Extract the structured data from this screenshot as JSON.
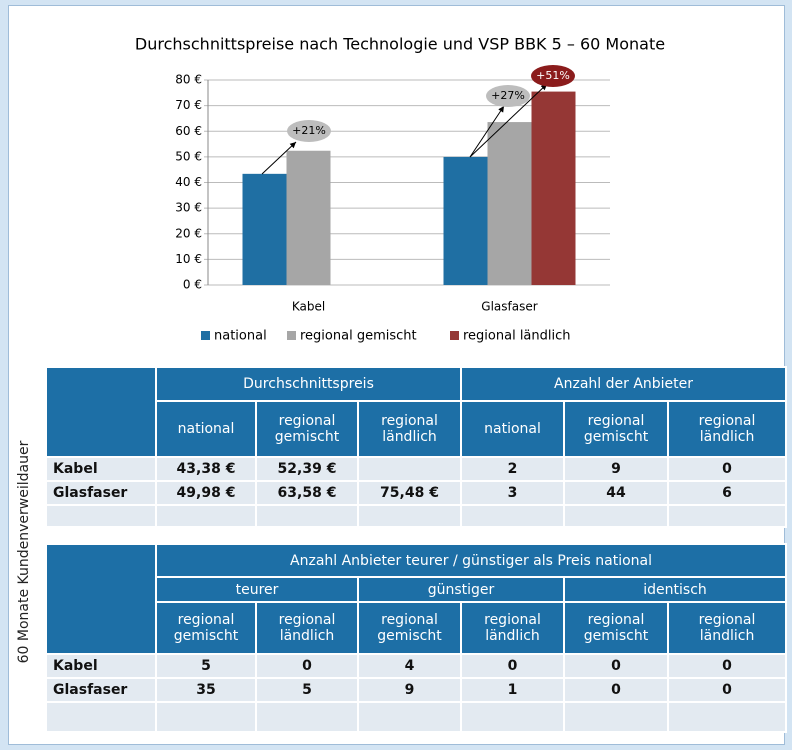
{
  "chart_data": {
    "type": "bar",
    "title": "Durchschnittspreise nach Technologie und VSP BBK 5 – 60 Monate",
    "categories": [
      "Kabel",
      "Glasfaser"
    ],
    "series": [
      {
        "name": "national",
        "color": "#1f6fa3",
        "values": [
          43.38,
          49.98
        ]
      },
      {
        "name": "regional gemischt",
        "color": "#a6a6a6",
        "values": [
          52.39,
          63.58
        ]
      },
      {
        "name": "regional ländlich",
        "color": "#953735",
        "values": [
          null,
          75.48
        ]
      }
    ],
    "ylim": [
      0,
      80
    ],
    "yticks": [
      {
        "value": 0,
        "label": "0 €"
      },
      {
        "value": 10,
        "label": "10 €"
      },
      {
        "value": 20,
        "label": "20 €"
      },
      {
        "value": 30,
        "label": "30 €"
      },
      {
        "value": 40,
        "label": "40 €"
      },
      {
        "value": 50,
        "label": "50 €"
      },
      {
        "value": 60,
        "label": "60 €"
      },
      {
        "value": 70,
        "label": "70 €"
      },
      {
        "value": 80,
        "label": "80 €"
      }
    ],
    "annotations": [
      "+21%",
      "+27%",
      "+51%"
    ],
    "legend": "bottom"
  },
  "side_label": "60 Monate Kundenverweildauer",
  "tables": [
    {
      "header_groups": [
        "Durchschnittspreis",
        "Anzahl der Anbieter"
      ],
      "columns": [
        "national",
        "regional gemischt",
        "regional ländlich",
        "national",
        "regional gemischt",
        "regional ländlich"
      ],
      "rows": [
        [
          "Kabel",
          "43,38 €",
          "52,39 €",
          null,
          "2",
          "9",
          "0"
        ],
        [
          "Glasfaser",
          "49,98 €",
          "63,58 €",
          "75,48 €",
          "3",
          "44",
          "6"
        ]
      ]
    },
    {
      "title": "Anzahl Anbieter teurer / günstiger als Preis national",
      "header_groups": [
        "teurer",
        "günstiger",
        "identisch"
      ],
      "columns": [
        "regional gemischt",
        "regional ländlich",
        "regional gemischt",
        "regional ländlich",
        "regional gemischt",
        "regional ländlich"
      ],
      "rows": [
        [
          "Kabel",
          "5",
          "0",
          "4",
          "0",
          "0",
          "0"
        ],
        [
          "Glasfaser",
          "35",
          "5",
          "9",
          "1",
          "0",
          "0"
        ]
      ]
    }
  ]
}
